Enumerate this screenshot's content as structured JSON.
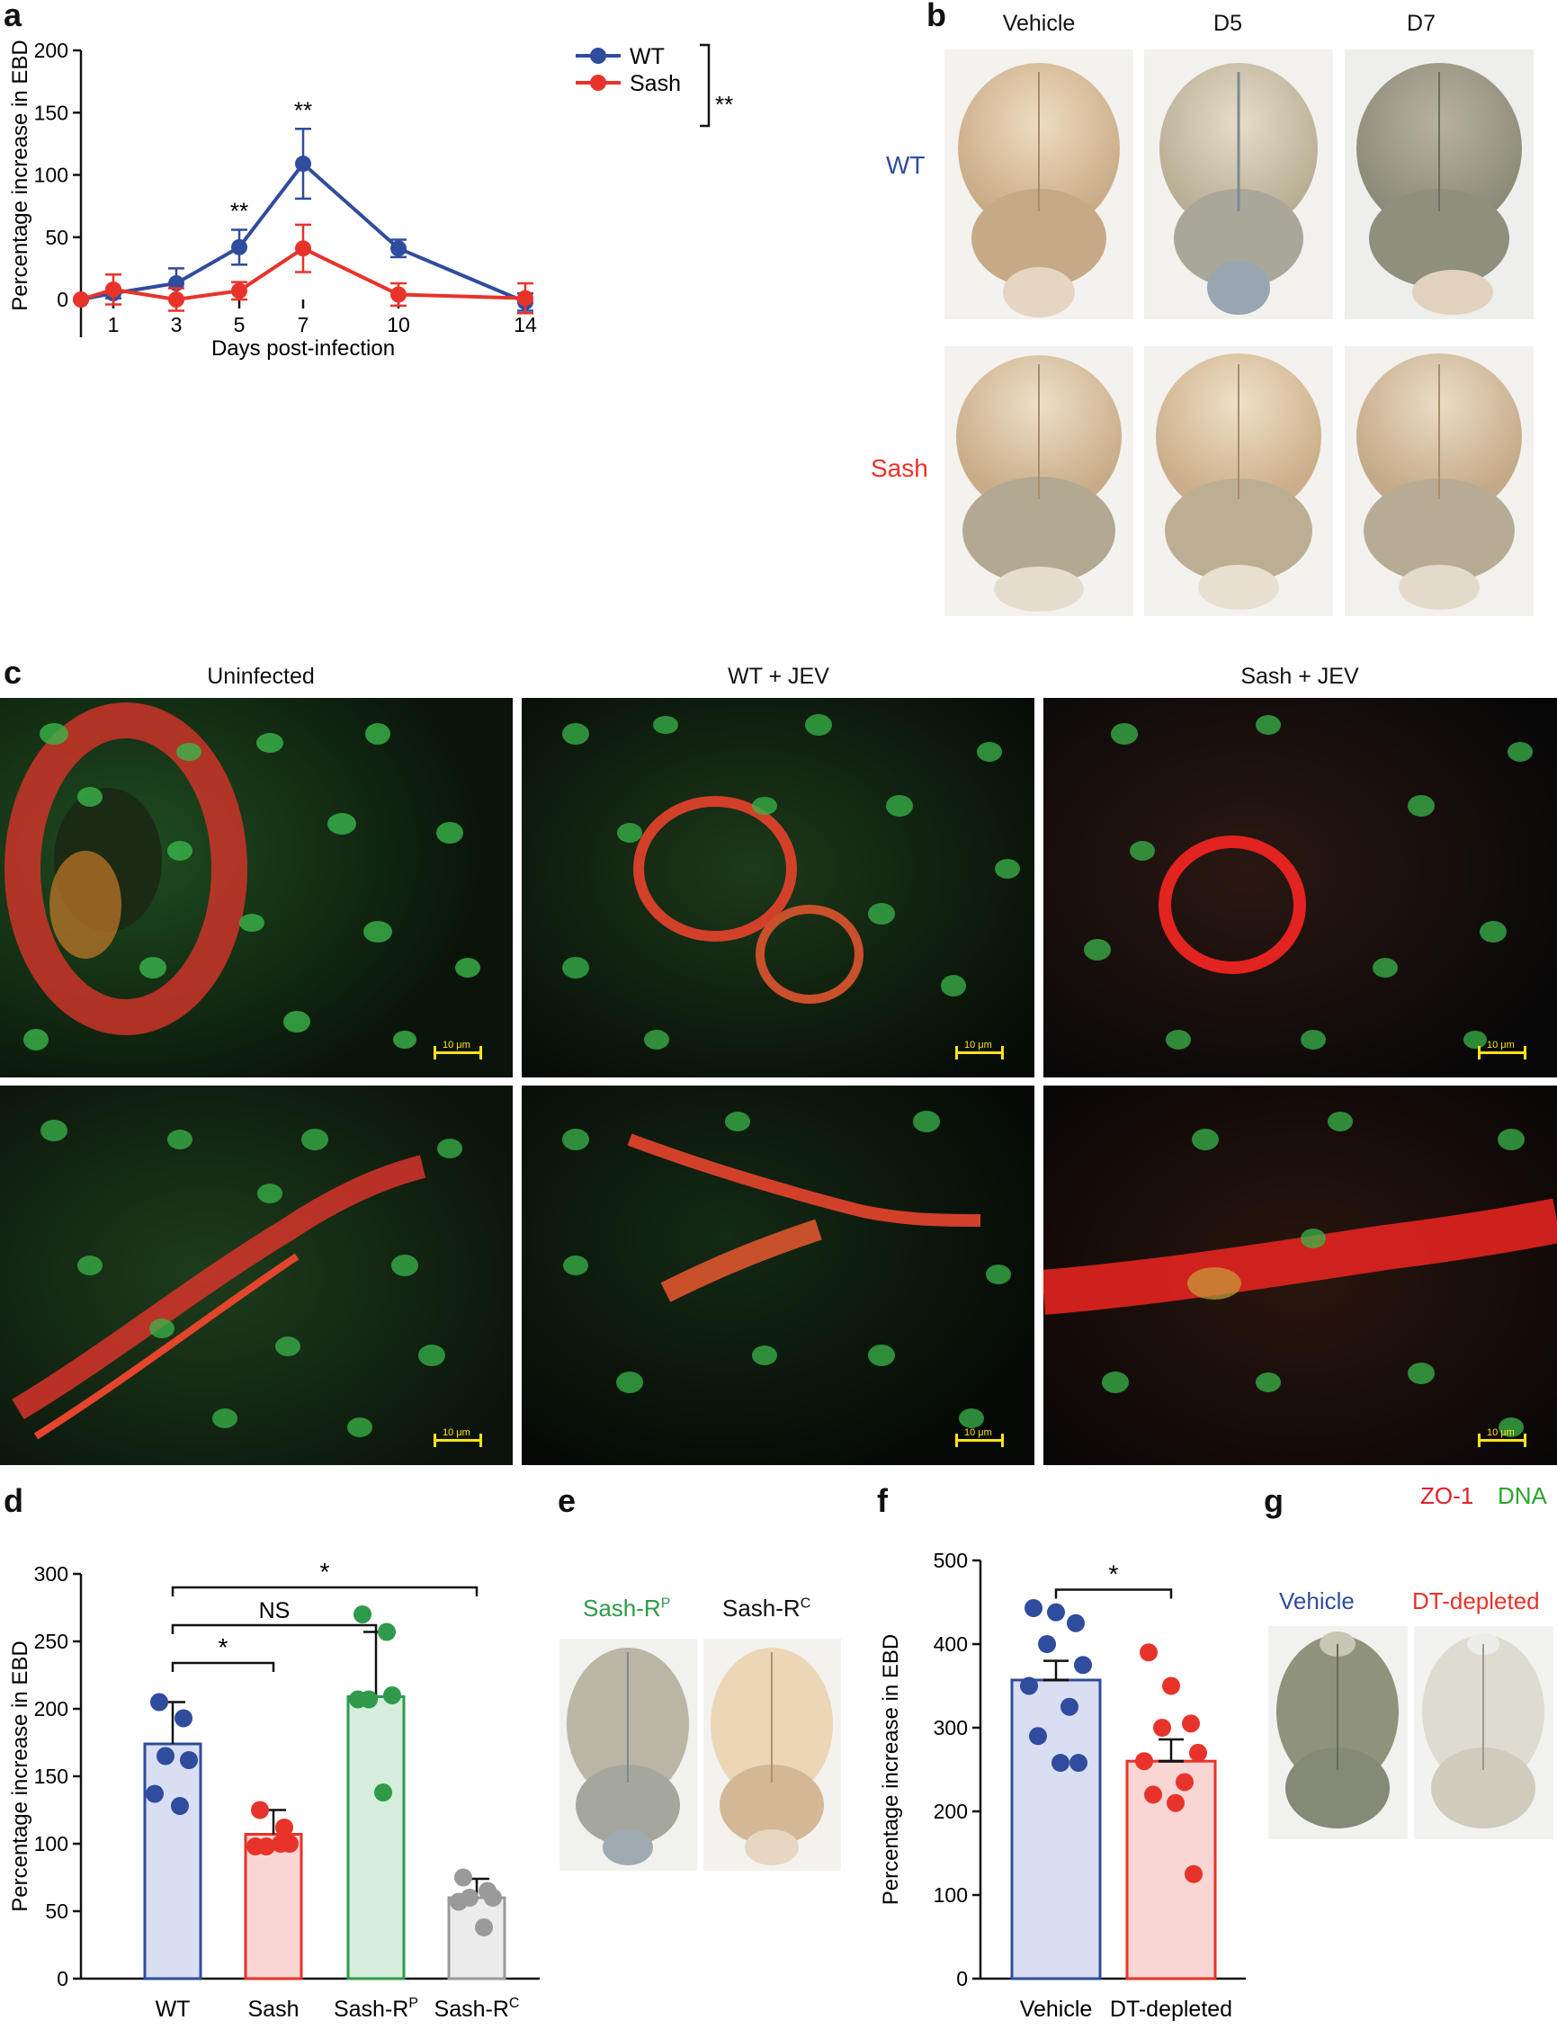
{
  "panels": {
    "a": "a",
    "b": "b",
    "c": "c",
    "d": "d",
    "e": "e",
    "f": "f",
    "g": "g"
  },
  "panel_b": {
    "columns": [
      "Vehicle",
      "D5",
      "D7"
    ],
    "rows": [
      {
        "label": "WT",
        "color": "#2f4c9e"
      },
      {
        "label": "Sash",
        "color": "#e8332a"
      }
    ]
  },
  "panel_c": {
    "columns": [
      "Uninfected",
      "WT + JEV",
      "Sash + JEV"
    ],
    "scale_label": "10 μm",
    "legend": [
      {
        "label": "ZO-1",
        "color": "#e0202a"
      },
      {
        "label": "DNA",
        "color": "#2aa52a"
      }
    ]
  },
  "panel_e": {
    "labels": [
      {
        "main": "Sash-R",
        "sup": "P",
        "color": "#2e9a4a"
      },
      {
        "main": "Sash-R",
        "sup": "C",
        "color": "#111111"
      }
    ]
  },
  "panel_g": {
    "labels": [
      {
        "label": "Vehicle",
        "color": "#2f4c9e"
      },
      {
        "label": "DT-depleted",
        "color": "#e8332a"
      }
    ]
  },
  "chart_data": [
    {
      "panel": "a",
      "type": "line",
      "xlabel": "Days post-infection",
      "ylabel": "Percentage increase in EBD",
      "x": [
        0,
        1,
        3,
        5,
        7,
        10,
        14
      ],
      "xticks": [
        1,
        3,
        5,
        7,
        10,
        14
      ],
      "ylim": [
        0,
        200
      ],
      "yticks": [
        0,
        50,
        100,
        150,
        200
      ],
      "legend_position": "top-right",
      "legend_significance": "**",
      "series": [
        {
          "name": "WT",
          "color": "#2f4c9e",
          "values": [
            0,
            5,
            13,
            42,
            109,
            41,
            -2
          ],
          "errors": [
            0,
            4,
            12,
            14,
            28,
            7,
            7
          ]
        },
        {
          "name": "Sash",
          "color": "#e8332a",
          "values": [
            0,
            8,
            0,
            7,
            41,
            4,
            1
          ],
          "errors": [
            0,
            12,
            9,
            7,
            19,
            9,
            12
          ]
        }
      ],
      "annotations": [
        {
          "x": 5,
          "text": "**"
        },
        {
          "x": 7,
          "text": "**"
        }
      ]
    },
    {
      "panel": "d",
      "type": "bar",
      "ylabel": "Percentage increase in EBD",
      "ylim": [
        0,
        300
      ],
      "yticks": [
        0,
        50,
        100,
        150,
        200,
        250,
        300
      ],
      "categories": [
        {
          "main": "WT",
          "sup": ""
        },
        {
          "main": "Sash",
          "sup": ""
        },
        {
          "main": "Sash-R",
          "sup": "P"
        },
        {
          "main": "Sash-R",
          "sup": "C"
        }
      ],
      "values": [
        174,
        107,
        209,
        60
      ],
      "errors": [
        31,
        18,
        48,
        14
      ],
      "colors": [
        "#2f4c9e",
        "#e8332a",
        "#2e9a4a",
        "#9a9a9a"
      ],
      "fills": [
        "#d9def2",
        "#f9d6d3",
        "#d6eddb",
        "#ececec"
      ],
      "points": [
        [
          205,
          193,
          162,
          165,
          137,
          128
        ],
        [
          125,
          112,
          100,
          98,
          98,
          100
        ],
        [
          270,
          257,
          210,
          207,
          207,
          138
        ],
        [
          75,
          65,
          60,
          60,
          57,
          38
        ]
      ],
      "brackets": [
        {
          "from": 0,
          "to": 1,
          "text": "*",
          "y": 234
        },
        {
          "from": 0,
          "to": 2,
          "text": "NS",
          "y": 262
        },
        {
          "from": 0,
          "to": 3,
          "text": "*",
          "y": 290
        }
      ]
    },
    {
      "panel": "f",
      "type": "bar",
      "ylabel": "Percentage increase in EBD",
      "ylim": [
        0,
        500
      ],
      "yticks": [
        0,
        100,
        200,
        300,
        400,
        500
      ],
      "categories": [
        "Vehicle",
        "DT-depleted"
      ],
      "values": [
        357,
        260
      ],
      "errors": [
        23,
        26
      ],
      "colors": [
        "#2f4c9e",
        "#e8332a"
      ],
      "fills": [
        "#d9def2",
        "#f9d6d3"
      ],
      "points": [
        [
          443,
          438,
          425,
          400,
          375,
          350,
          325,
          290,
          258,
          258
        ],
        [
          390,
          350,
          305,
          300,
          270,
          260,
          235,
          220,
          210,
          125
        ]
      ],
      "brackets": [
        {
          "from": 0,
          "to": 1,
          "text": "*",
          "y": 465
        }
      ]
    }
  ]
}
